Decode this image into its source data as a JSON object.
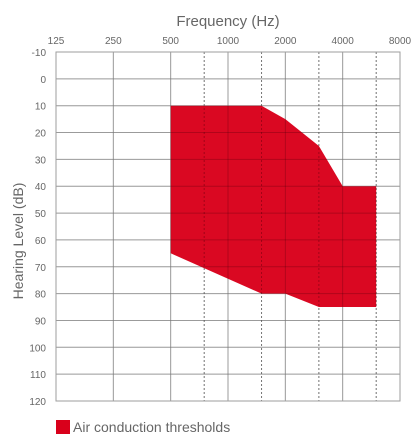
{
  "chart_data": {
    "type": "area",
    "title": "Frequency (Hz)",
    "ylabel": "Hearing Level (dB)",
    "x_scale": "log2",
    "x_ticks": [
      125,
      250,
      500,
      1000,
      2000,
      4000,
      8000
    ],
    "x_tick_labels": [
      "125",
      "250",
      "500",
      "1000",
      "2000",
      "4000",
      "8000"
    ],
    "x_intermediate_ticks": [
      750,
      1500,
      3000,
      6000
    ],
    "y_ticks": [
      -10,
      0,
      10,
      20,
      30,
      40,
      50,
      60,
      70,
      80,
      90,
      100,
      110,
      120
    ],
    "y_tick_labels": [
      "-10",
      "0",
      "10",
      "20",
      "30",
      "40",
      "50",
      "60",
      "70",
      "80",
      "90",
      "100",
      "110",
      "120"
    ],
    "ylim": [
      -10,
      120
    ],
    "y_inverted": true,
    "grid": true,
    "legend_position": "bottom-left",
    "series": [
      {
        "name": "Air conduction thresholds",
        "color": "#d9001b",
        "upper_boundary": [
          {
            "x": 500,
            "y": 10
          },
          {
            "x": 1500,
            "y": 10
          },
          {
            "x": 2000,
            "y": 15
          },
          {
            "x": 3000,
            "y": 25
          },
          {
            "x": 4000,
            "y": 40
          },
          {
            "x": 6000,
            "y": 40
          }
        ],
        "lower_boundary": [
          {
            "x": 500,
            "y": 65
          },
          {
            "x": 1500,
            "y": 80
          },
          {
            "x": 2000,
            "y": 80
          },
          {
            "x": 3000,
            "y": 85
          },
          {
            "x": 6000,
            "y": 85
          }
        ]
      }
    ],
    "legend": {
      "label": "Air conduction thresholds",
      "color": "#d9001b"
    }
  }
}
